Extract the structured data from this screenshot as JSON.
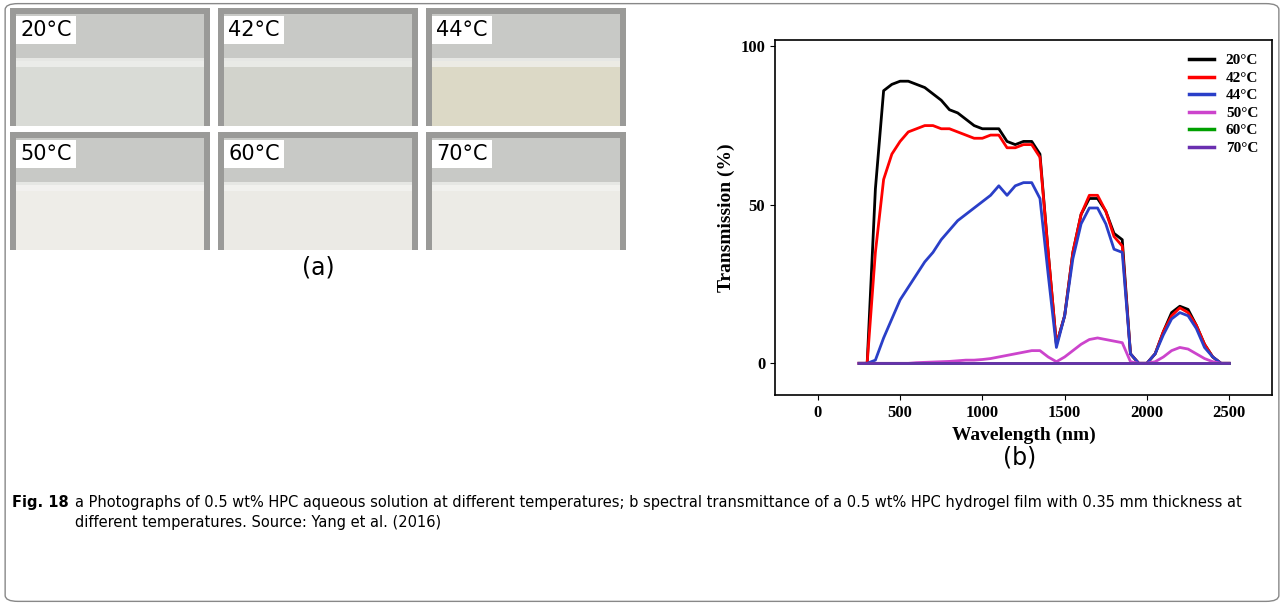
{
  "panels": {
    "a": {
      "label": "(a)",
      "photos": [
        {
          "label": "20°C",
          "color": "#d9dbd6"
        },
        {
          "label": "42°C",
          "color": "#d2d3cc"
        },
        {
          "label": "44°C",
          "color": "#dcd9c6"
        },
        {
          "label": "50°C",
          "color": "#eeede8"
        },
        {
          "label": "60°C",
          "color": "#ebeae5"
        },
        {
          "label": "70°C",
          "color": "#ecebe6"
        }
      ]
    },
    "b": {
      "label": "(b)"
    }
  },
  "chart_data": {
    "type": "line",
    "x_label": "Wavelength (nm)",
    "y_label": "Transmission (%)",
    "xlim": [
      -260,
      2760
    ],
    "ylim": [
      -10,
      102
    ],
    "xticks": [
      0,
      500,
      1000,
      1500,
      2000,
      2500
    ],
    "yticks": [
      0,
      50,
      100
    ],
    "grid": false,
    "legend": "upper right",
    "x": [
      250,
      300,
      350,
      400,
      450,
      500,
      550,
      600,
      650,
      700,
      750,
      800,
      850,
      900,
      950,
      1000,
      1050,
      1100,
      1150,
      1200,
      1250,
      1300,
      1350,
      1400,
      1450,
      1500,
      1550,
      1600,
      1650,
      1700,
      1750,
      1800,
      1850,
      1900,
      1950,
      2000,
      2050,
      2100,
      2150,
      2200,
      2250,
      2300,
      2350,
      2400,
      2450,
      2500
    ],
    "series": [
      {
        "name": "20°C",
        "color": "#000000",
        "values": [
          0,
          0,
          55,
          86,
          88,
          89,
          89,
          88,
          87,
          85,
          83,
          80,
          79,
          77,
          75,
          74,
          74,
          74,
          70,
          69,
          70,
          70,
          66,
          35,
          6,
          15,
          35,
          47,
          52,
          52,
          48,
          41,
          39,
          3,
          0,
          0,
          3,
          10,
          16,
          18,
          17,
          12,
          6,
          2,
          0,
          0
        ]
      },
      {
        "name": "42°C",
        "color": "#ff0000",
        "values": [
          0,
          0,
          35,
          58,
          66,
          70,
          73,
          74,
          75,
          75,
          74,
          74,
          73,
          72,
          71,
          71,
          72,
          72,
          68,
          68,
          69,
          69,
          65,
          35,
          6,
          15,
          35,
          47,
          53,
          53,
          48,
          40,
          37,
          3,
          0,
          0,
          3,
          10,
          15,
          17.5,
          16,
          12,
          6,
          2,
          0,
          0
        ]
      },
      {
        "name": "44°C",
        "color": "#2a3fc8",
        "values": [
          0,
          0,
          1,
          8,
          14,
          20,
          24,
          28,
          32,
          35,
          39,
          42,
          45,
          47,
          49,
          51,
          53,
          56,
          53,
          56,
          57,
          57,
          52,
          28,
          5,
          15,
          33,
          44,
          49,
          49,
          44,
          36,
          35,
          3,
          0,
          0,
          3,
          9,
          14,
          16,
          15,
          11,
          5,
          2,
          0,
          0
        ]
      },
      {
        "name": "50°C",
        "color": "#cc44cc",
        "values": [
          0,
          0,
          0,
          0,
          0,
          0,
          0,
          0.2,
          0.3,
          0.4,
          0.5,
          0.6,
          0.8,
          1,
          1,
          1.2,
          1.5,
          2,
          2.5,
          3,
          3.5,
          4,
          4,
          2,
          0.5,
          2,
          4,
          6,
          7.5,
          8,
          7.5,
          7,
          6.5,
          0.5,
          0,
          0,
          0.5,
          2,
          4,
          5,
          4.5,
          3,
          1.5,
          0.5,
          0,
          0
        ]
      },
      {
        "name": "60°C",
        "color": "#00a000",
        "values": [
          0,
          0,
          0,
          0,
          0,
          0,
          0,
          0,
          0,
          0,
          0,
          0,
          0,
          0,
          0,
          0,
          0,
          0,
          0,
          0,
          0,
          0,
          0,
          0,
          0,
          0,
          0,
          0,
          0,
          0,
          0,
          0,
          0,
          0,
          0,
          0,
          0,
          0,
          0,
          0,
          0,
          0,
          0,
          0,
          0,
          0
        ]
      },
      {
        "name": "70°C",
        "color": "#6a2fb0",
        "values": [
          0,
          0,
          0,
          0,
          0,
          0,
          0,
          0,
          0,
          0,
          0,
          0,
          0,
          0,
          0,
          0,
          0,
          0,
          0,
          0,
          0,
          0,
          0,
          0,
          0,
          0,
          0,
          0,
          0,
          0,
          0,
          0,
          0,
          0,
          0,
          0,
          0,
          0,
          0,
          0,
          0,
          0,
          0,
          0,
          0,
          0
        ]
      }
    ]
  },
  "caption": {
    "label": "Fig. 18",
    "text": "a Photographs of 0.5 wt% HPC aqueous solution at different temperatures; b spectral transmittance of a 0.5 wt% HPC hydrogel film with 0.35 mm thickness at different temperatures. Source: Yang et al. (2016)"
  }
}
